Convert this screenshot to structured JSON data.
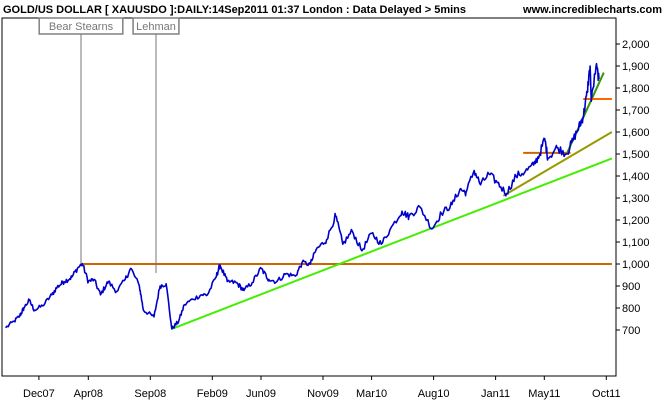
{
  "header": {
    "title": "GOLD/US DOLLAR [ XAUUSDO ]:DAILY:14Sep2011 01:37 London : Data Delayed > 5mins",
    "site": "www.incrediblecharts.com"
  },
  "annotations": [
    {
      "label": "Bear Stearns",
      "date": "2008-03-14"
    },
    {
      "label": "Lehman",
      "date": "2008-09-15"
    }
  ],
  "chart_data": {
    "type": "line",
    "title": "GOLD/US DOLLAR [ XAUUSDO ]:DAILY:14Sep2011 01:37 London : Data Delayed > 5mins",
    "xlabel": "",
    "ylabel": "",
    "ylim": [
      600,
      2000
    ],
    "x_tick_labels": [
      "Dec07",
      "Apr08",
      "Sep08",
      "Feb09",
      "Jun09",
      "Nov09",
      "Mar10",
      "Aug10",
      "Jan11",
      "May11",
      "Oct11"
    ],
    "x_tick_dates": [
      "2007-12-01",
      "2008-04-01",
      "2008-09-01",
      "2009-02-01",
      "2009-06-01",
      "2009-11-01",
      "2010-03-01",
      "2010-08-01",
      "2011-01-01",
      "2011-05-01",
      "2011-10-01"
    ],
    "y_tick_labels": [
      "700",
      "800",
      "900",
      "1,000",
      "1,100",
      "1,200",
      "1,300",
      "1,400",
      "1,500",
      "1,600",
      "1,700",
      "1,800",
      "1,900",
      "2,000"
    ],
    "y_ticks": [
      700,
      800,
      900,
      1000,
      1100,
      1200,
      1300,
      1400,
      1500,
      1600,
      1700,
      1800,
      1900,
      2000
    ],
    "grid": false,
    "series": [
      {
        "color": "#0000cc",
        "points": [
          [
            "2007-09-10",
            710
          ],
          [
            "2007-10-01",
            740
          ],
          [
            "2007-10-15",
            765
          ],
          [
            "2007-10-25",
            800
          ],
          [
            "2007-11-07",
            835
          ],
          [
            "2007-11-20",
            790
          ],
          [
            "2007-12-10",
            810
          ],
          [
            "2008-01-02",
            860
          ],
          [
            "2008-01-15",
            895
          ],
          [
            "2008-02-01",
            920
          ],
          [
            "2008-02-20",
            940
          ],
          [
            "2008-03-05",
            980
          ],
          [
            "2008-03-17",
            1002
          ],
          [
            "2008-04-01",
            920
          ],
          [
            "2008-04-15",
            930
          ],
          [
            "2008-05-01",
            860
          ],
          [
            "2008-05-20",
            920
          ],
          [
            "2008-06-10",
            875
          ],
          [
            "2008-07-01",
            930
          ],
          [
            "2008-07-15",
            980
          ],
          [
            "2008-08-05",
            900
          ],
          [
            "2008-08-15",
            790
          ],
          [
            "2008-09-10",
            760
          ],
          [
            "2008-09-25",
            900
          ],
          [
            "2008-10-10",
            910
          ],
          [
            "2008-10-24",
            705
          ],
          [
            "2008-11-10",
            740
          ],
          [
            "2008-11-24",
            815
          ],
          [
            "2008-12-15",
            840
          ],
          [
            "2009-01-05",
            860
          ],
          [
            "2009-01-20",
            860
          ],
          [
            "2009-02-10",
            940
          ],
          [
            "2009-02-20",
            995
          ],
          [
            "2009-03-10",
            920
          ],
          [
            "2009-04-01",
            915
          ],
          [
            "2009-04-20",
            880
          ],
          [
            "2009-05-10",
            915
          ],
          [
            "2009-06-01",
            980
          ],
          [
            "2009-06-20",
            930
          ],
          [
            "2009-07-10",
            920
          ],
          [
            "2009-08-01",
            955
          ],
          [
            "2009-08-25",
            945
          ],
          [
            "2009-09-10",
            1005
          ],
          [
            "2009-10-01",
            1000
          ],
          [
            "2009-10-15",
            1065
          ],
          [
            "2009-11-10",
            1110
          ],
          [
            "2009-12-02",
            1220
          ],
          [
            "2009-12-20",
            1090
          ],
          [
            "2010-01-12",
            1150
          ],
          [
            "2010-02-05",
            1060
          ],
          [
            "2010-03-01",
            1140
          ],
          [
            "2010-03-25",
            1090
          ],
          [
            "2010-04-15",
            1155
          ],
          [
            "2010-05-15",
            1240
          ],
          [
            "2010-06-01",
            1215
          ],
          [
            "2010-06-28",
            1260
          ],
          [
            "2010-07-28",
            1160
          ],
          [
            "2010-08-20",
            1230
          ],
          [
            "2010-09-15",
            1270
          ],
          [
            "2010-10-05",
            1340
          ],
          [
            "2010-10-20",
            1325
          ],
          [
            "2010-11-09",
            1425
          ],
          [
            "2010-11-25",
            1360
          ],
          [
            "2010-12-15",
            1410
          ],
          [
            "2011-01-05",
            1370
          ],
          [
            "2011-01-28",
            1320
          ],
          [
            "2011-02-20",
            1400
          ],
          [
            "2011-03-15",
            1420
          ],
          [
            "2011-04-05",
            1450
          ],
          [
            "2011-04-20",
            1500
          ],
          [
            "2011-05-02",
            1570
          ],
          [
            "2011-05-10",
            1480
          ],
          [
            "2011-06-01",
            1530
          ],
          [
            "2011-06-25",
            1500
          ],
          [
            "2011-07-10",
            1560
          ],
          [
            "2011-07-25",
            1620
          ],
          [
            "2011-08-05",
            1670
          ],
          [
            "2011-08-15",
            1780
          ],
          [
            "2011-08-22",
            1900
          ],
          [
            "2011-08-25",
            1740
          ],
          [
            "2011-09-06",
            1900
          ],
          [
            "2011-09-13",
            1840
          ]
        ]
      }
    ],
    "trendlines": [
      {
        "color": "#cc6600",
        "from": [
          "2008-03-14",
          1000
        ],
        "to": [
          "2011-10-15",
          1000
        ]
      },
      {
        "color": "#44ee00",
        "from": [
          "2008-10-24",
          705
        ],
        "to": [
          "2011-10-15",
          1480
        ]
      },
      {
        "color": "#999900",
        "from": [
          "2011-01-20",
          1310
        ],
        "to": [
          "2011-10-15",
          1600
        ]
      },
      {
        "color": "#339900",
        "from": [
          "2011-06-25",
          1500
        ],
        "to": [
          "2011-09-25",
          1870
        ]
      },
      {
        "color": "#cc6600",
        "from": [
          "2011-03-10",
          1505
        ],
        "to": [
          "2011-07-05",
          1505
        ]
      },
      {
        "color": "#ff6600",
        "from": [
          "2011-08-05",
          1750
        ],
        "to": [
          "2011-10-15",
          1750
        ]
      }
    ]
  }
}
